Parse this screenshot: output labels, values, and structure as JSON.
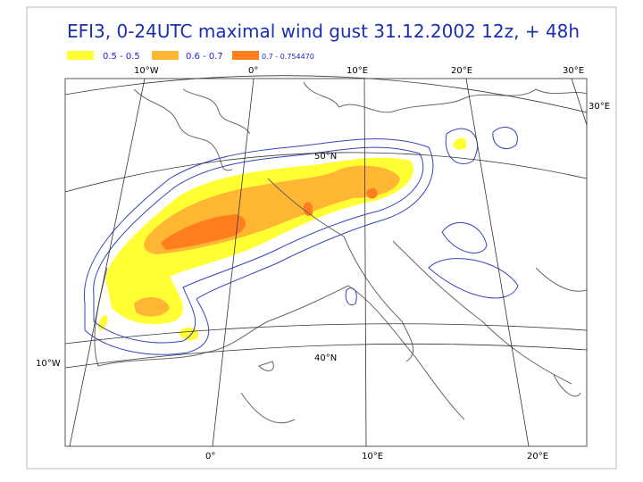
{
  "header": {
    "title": "EFI3, 0-24UTC maximal wind gust  31.12.2002 12z, + 48h"
  },
  "legend": [
    {
      "label": "0.5 - 0.5",
      "color": "#ffff33"
    },
    {
      "label": "0.6 - 0.7",
      "color": "#ffb733"
    },
    {
      "label": "0.7 - 0.754470",
      "color": "#ff7f1f"
    }
  ],
  "labels": {
    "top": [
      "10°W",
      "0°",
      "10°E",
      "20°E",
      "30°E"
    ],
    "right": [
      "30°E"
    ],
    "left": [
      "10°W"
    ],
    "bottom": [
      "0°",
      "10°E",
      "20°E"
    ],
    "parallels": [
      "50°N",
      "40°N"
    ]
  }
}
